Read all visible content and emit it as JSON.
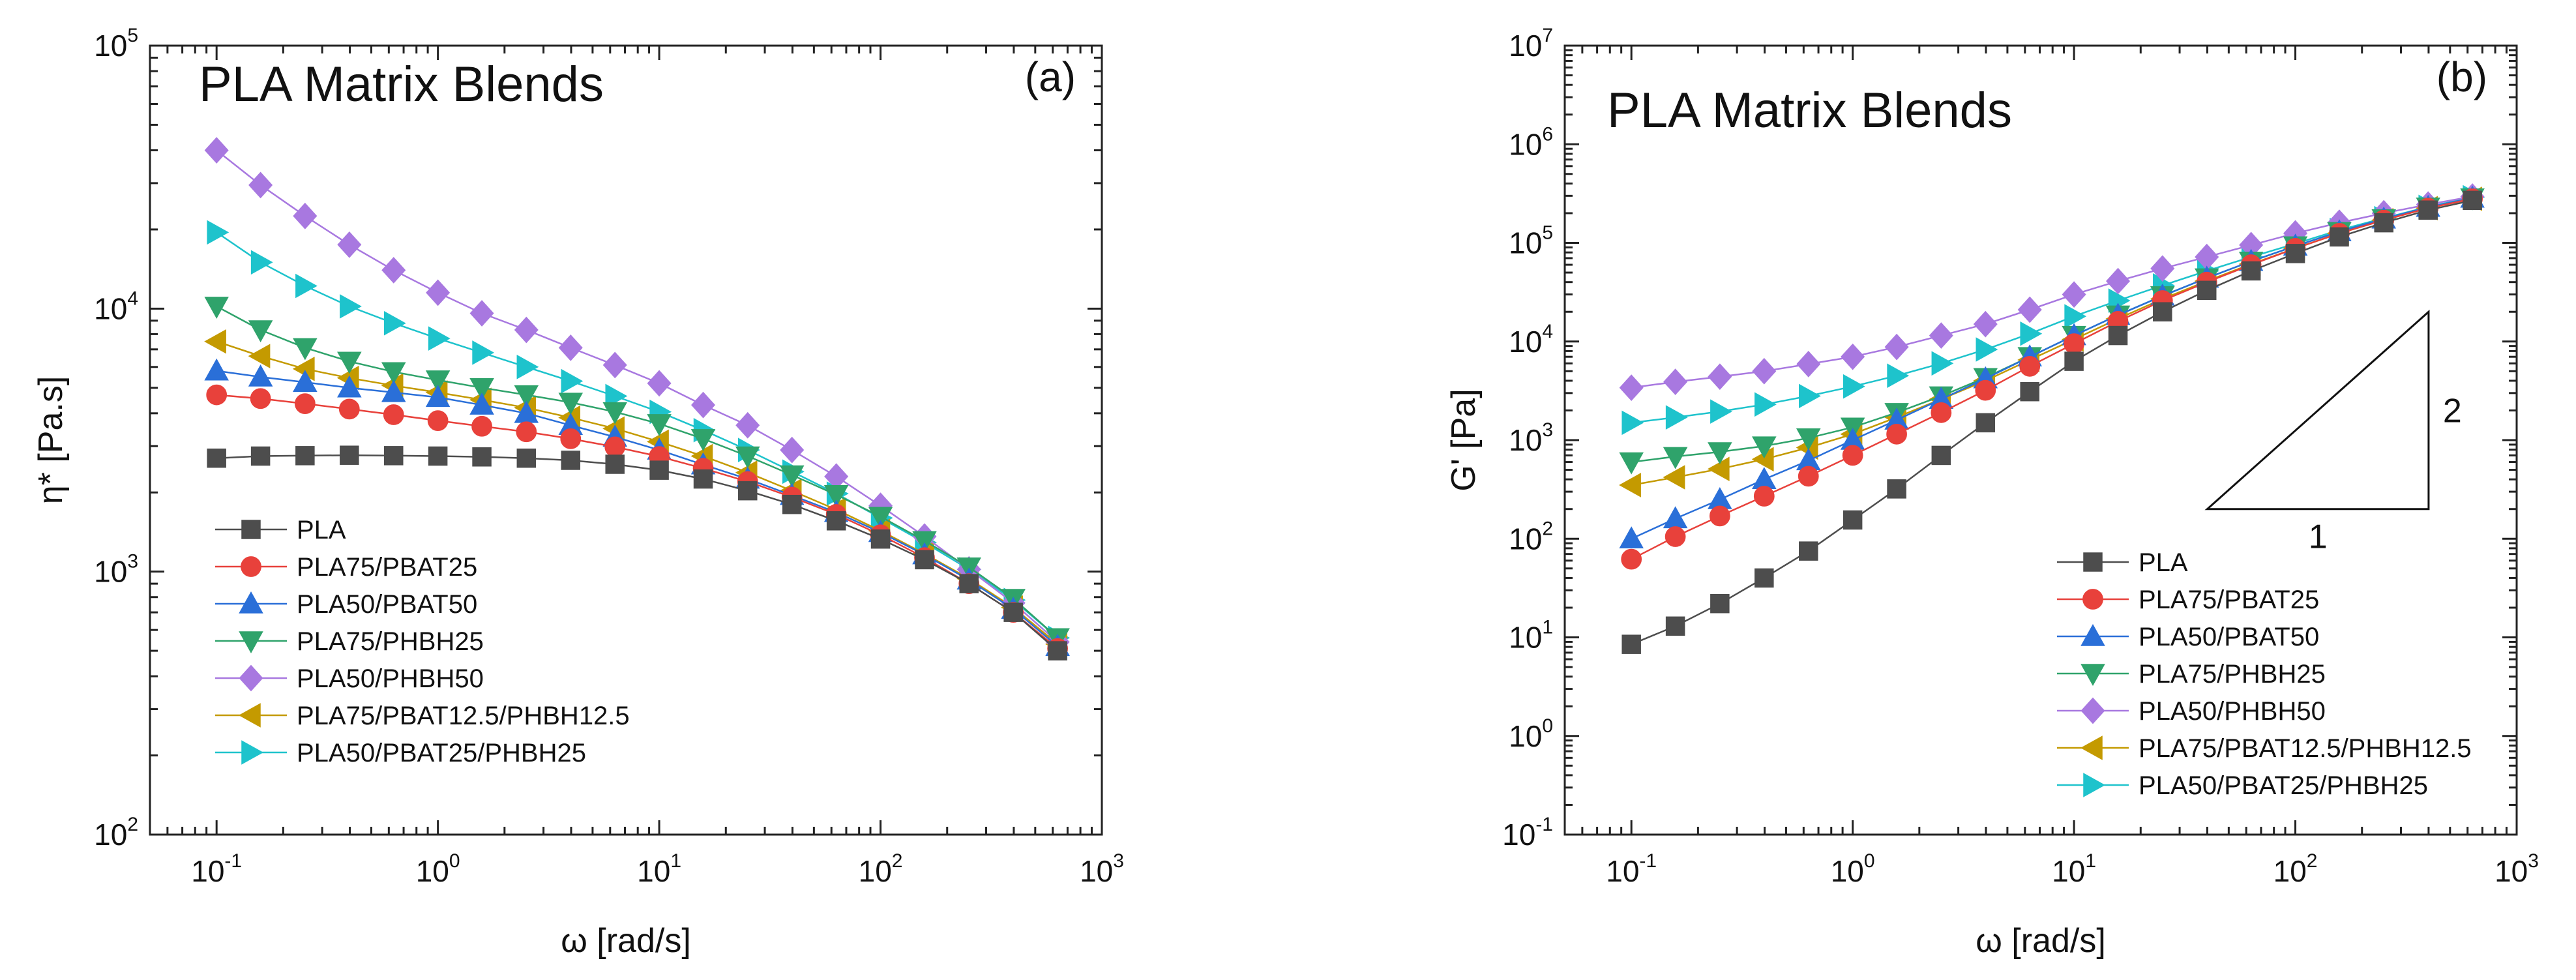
{
  "chart_data": [
    {
      "type": "line",
      "panel_tag": "(a)",
      "title": "PLA Matrix Blends",
      "xlabel": "ω [rad/s]",
      "ylabel": "η* [Pa.s]",
      "xscale": "log",
      "yscale": "log",
      "xlim": [
        0.05,
        1000
      ],
      "ylim": [
        100,
        100000
      ],
      "xticks": [
        {
          "base": "10",
          "exp": "-1"
        },
        {
          "base": "10",
          "exp": "0"
        },
        {
          "base": "10",
          "exp": "1"
        },
        {
          "base": "10",
          "exp": "2"
        },
        {
          "base": "10",
          "exp": "3"
        }
      ],
      "yticks": [
        {
          "base": "10",
          "exp": "2"
        },
        {
          "base": "10",
          "exp": "3"
        },
        {
          "base": "10",
          "exp": "4"
        },
        {
          "base": "10",
          "exp": "5"
        }
      ],
      "legend_position": "left-middle",
      "x": [
        0.1,
        0.158,
        0.251,
        0.398,
        0.631,
        1.0,
        1.58,
        2.51,
        3.98,
        6.31,
        10,
        15.8,
        25.1,
        39.8,
        63.1,
        100,
        158,
        251,
        398,
        631
      ],
      "series": [
        {
          "name": "PLA",
          "color": "#4d4d4d",
          "marker": "square",
          "values": [
            2700,
            2750,
            2760,
            2770,
            2760,
            2750,
            2730,
            2700,
            2650,
            2560,
            2430,
            2250,
            2030,
            1800,
            1560,
            1330,
            1110,
            900,
            700,
            500
          ]
        },
        {
          "name": "PLA75/PBAT25",
          "color": "#e8413b",
          "marker": "circle",
          "values": [
            4700,
            4550,
            4350,
            4150,
            3950,
            3750,
            3570,
            3400,
            3200,
            2980,
            2740,
            2470,
            2200,
            1920,
            1650,
            1380,
            1130,
            900,
            700,
            510
          ]
        },
        {
          "name": "PLA50/PBAT50",
          "color": "#2a6fd8",
          "marker": "triangle-up",
          "values": [
            5800,
            5500,
            5250,
            5000,
            4800,
            4600,
            4300,
            4000,
            3600,
            3250,
            2900,
            2550,
            2250,
            1950,
            1680,
            1410,
            1160,
            930,
            720,
            520
          ]
        },
        {
          "name": "PLA75/PHBH25",
          "color": "#2fa36b",
          "marker": "triangle-down",
          "values": [
            10200,
            8300,
            7100,
            6300,
            5750,
            5350,
            5000,
            4700,
            4400,
            4050,
            3650,
            3200,
            2750,
            2330,
            1960,
            1620,
            1310,
            1040,
            790,
            560
          ]
        },
        {
          "name": "PLA50/PHBH50",
          "color": "#a878e0",
          "marker": "diamond",
          "values": [
            40000,
            29500,
            22500,
            17500,
            14000,
            11500,
            9600,
            8300,
            7100,
            6100,
            5200,
            4300,
            3600,
            2900,
            2300,
            1780,
            1360,
            1020,
            760,
            540
          ]
        },
        {
          "name": "PLA75/PBAT12.5/PHBH12.5",
          "color": "#c49a00",
          "marker": "triangle-left",
          "values": [
            7500,
            6600,
            5900,
            5450,
            5100,
            4800,
            4500,
            4200,
            3850,
            3500,
            3120,
            2750,
            2380,
            2030,
            1720,
            1430,
            1170,
            940,
            730,
            530
          ]
        },
        {
          "name": "PLA50/PBAT25/PHBH25",
          "color": "#1ec3cc",
          "marker": "triangle-right",
          "values": [
            19500,
            15000,
            12200,
            10200,
            8800,
            7700,
            6800,
            6000,
            5300,
            4650,
            4050,
            3450,
            2900,
            2400,
            1980,
            1600,
            1290,
            1020,
            780,
            560
          ]
        }
      ]
    },
    {
      "type": "line",
      "panel_tag": "(b)",
      "title": "PLA Matrix Blends",
      "xlabel": "ω [rad/s]",
      "ylabel": "G' [Pa]",
      "xscale": "log",
      "yscale": "log",
      "xlim": [
        0.05,
        1000
      ],
      "ylim": [
        0.1,
        10000000
      ],
      "xticks": [
        {
          "base": "10",
          "exp": "-1"
        },
        {
          "base": "10",
          "exp": "0"
        },
        {
          "base": "10",
          "exp": "1"
        },
        {
          "base": "10",
          "exp": "2"
        },
        {
          "base": "10",
          "exp": "3"
        }
      ],
      "yticks": [
        {
          "base": "10",
          "exp": "-1"
        },
        {
          "base": "10",
          "exp": "0"
        },
        {
          "base": "10",
          "exp": "1"
        },
        {
          "base": "10",
          "exp": "2"
        },
        {
          "base": "10",
          "exp": "3"
        },
        {
          "base": "10",
          "exp": "4"
        },
        {
          "base": "10",
          "exp": "5"
        },
        {
          "base": "10",
          "exp": "6"
        },
        {
          "base": "10",
          "exp": "7"
        }
      ],
      "legend_position": "bottom-right",
      "slope_annotation": {
        "horizontal": "1",
        "vertical": "2",
        "x_range": [
          40,
          400
        ],
        "y_range": [
          200,
          20000
        ]
      },
      "x": [
        0.1,
        0.158,
        0.251,
        0.398,
        0.631,
        1.0,
        1.58,
        2.51,
        3.98,
        6.31,
        10,
        15.8,
        25.1,
        39.8,
        63.1,
        100,
        158,
        251,
        398,
        631
      ],
      "series": [
        {
          "name": "PLA",
          "color": "#4d4d4d",
          "marker": "square",
          "values": [
            8.5,
            13,
            22,
            40,
            75,
            155,
            320,
            700,
            1500,
            3100,
            6300,
            11500,
            20000,
            33000,
            52000,
            78000,
            115000,
            160000,
            215000,
            270000
          ]
        },
        {
          "name": "PLA75/PBAT25",
          "color": "#e8413b",
          "marker": "circle",
          "values": [
            62,
            105,
            170,
            270,
            430,
            700,
            1150,
            1900,
            3200,
            5600,
            9500,
            16000,
            26000,
            40000,
            60000,
            88000,
            125000,
            170000,
            225000,
            280000
          ]
        },
        {
          "name": "PLA50/PBAT50",
          "color": "#2a6fd8",
          "marker": "triangle-up",
          "values": [
            100,
            160,
            250,
            400,
            620,
            1000,
            1600,
            2600,
            4200,
            7000,
            11500,
            18500,
            29000,
            44000,
            65000,
            93000,
            130000,
            175000,
            230000,
            285000
          ]
        },
        {
          "name": "PLA75/PHBH25",
          "color": "#2fa36b",
          "marker": "triangle-down",
          "values": [
            600,
            680,
            760,
            870,
            1050,
            1350,
            1900,
            2800,
            4300,
            7000,
            11500,
            18500,
            29000,
            44000,
            65000,
            93000,
            130000,
            175000,
            230000,
            285000
          ]
        },
        {
          "name": "PLA50/PHBH50",
          "color": "#a878e0",
          "marker": "diamond",
          "values": [
            3400,
            3900,
            4400,
            5000,
            5900,
            7000,
            8800,
            11500,
            15000,
            21000,
            30000,
            41000,
            55000,
            72000,
            95000,
            125000,
            160000,
            200000,
            245000,
            295000
          ]
        },
        {
          "name": "PLA75/PBAT12.5/PHBH12.5",
          "color": "#c49a00",
          "marker": "triangle-left",
          "values": [
            350,
            420,
            510,
            640,
            840,
            1150,
            1700,
            2600,
            4000,
            6500,
            10500,
            17000,
            27000,
            41000,
            61000,
            88000,
            125000,
            170000,
            225000,
            280000
          ]
        },
        {
          "name": "PLA50/PBAT25/PHBH25",
          "color": "#1ec3cc",
          "marker": "triangle-right",
          "values": [
            1500,
            1700,
            1950,
            2300,
            2800,
            3500,
            4500,
            6000,
            8300,
            12000,
            18000,
            26000,
            37000,
            52000,
            72000,
            98000,
            135000,
            178000,
            232000,
            290000
          ]
        }
      ]
    }
  ]
}
